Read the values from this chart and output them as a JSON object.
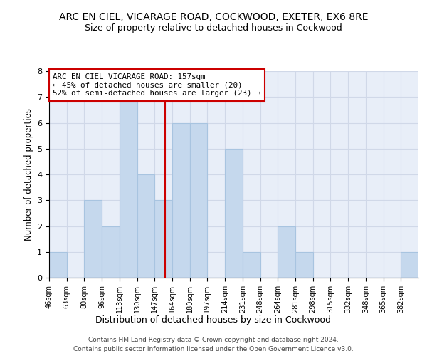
{
  "title": "ARC EN CIEL, VICARAGE ROAD, COCKWOOD, EXETER, EX6 8RE",
  "subtitle": "Size of property relative to detached houses in Cockwood",
  "xlabel": "Distribution of detached houses by size in Cockwood",
  "ylabel": "Number of detached properties",
  "bar_color": "#c5d8ed",
  "bar_edge_color": "#a8c4e0",
  "ref_line_color": "#cc0000",
  "annotation_line1": "ARC EN CIEL VICARAGE ROAD: 157sqm",
  "annotation_line2": "← 45% of detached houses are smaller (20)",
  "annotation_line3": "52% of semi-detached houses are larger (23) →",
  "bins": [
    46,
    63,
    80,
    96,
    113,
    130,
    147,
    164,
    180,
    197,
    214,
    231,
    248,
    264,
    281,
    298,
    315,
    332,
    348,
    365,
    382
  ],
  "counts": [
    1,
    0,
    3,
    2,
    7,
    4,
    3,
    6,
    6,
    0,
    5,
    1,
    0,
    2,
    1,
    0,
    0,
    0,
    0,
    0,
    1
  ],
  "tick_labels": [
    "46sqm",
    "63sqm",
    "80sqm",
    "96sqm",
    "113sqm",
    "130sqm",
    "147sqm",
    "164sqm",
    "180sqm",
    "197sqm",
    "214sqm",
    "231sqm",
    "248sqm",
    "264sqm",
    "281sqm",
    "298sqm",
    "315sqm",
    "332sqm",
    "348sqm",
    "365sqm",
    "382sqm"
  ],
  "ylim": [
    0,
    8
  ],
  "yticks": [
    0,
    1,
    2,
    3,
    4,
    5,
    6,
    7,
    8
  ],
  "footnote1": "Contains HM Land Registry data © Crown copyright and database right 2024.",
  "footnote2": "Contains public sector information licensed under the Open Government Licence v3.0.",
  "grid_color": "#d0d8e8",
  "background_color": "#e8eef8"
}
